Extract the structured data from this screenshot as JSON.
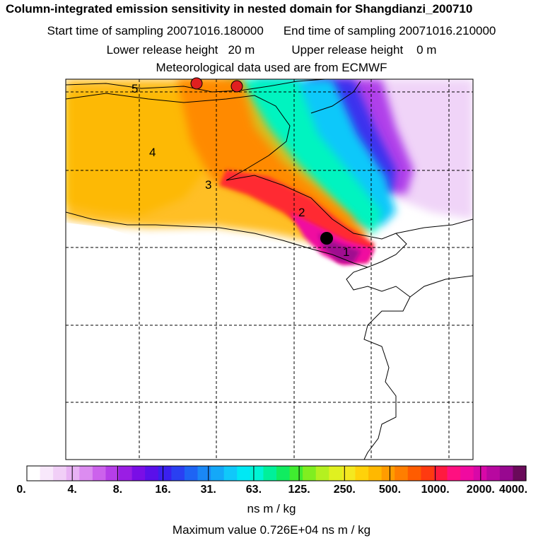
{
  "header": {
    "title": "Column-integrated emission sensitivity in nested domain for Shangdianzi_200710",
    "start_label": "Start time of sampling 20071016.180000",
    "end_label": "End time of sampling 20071016.210000",
    "lower_label": "Lower release height   20 m",
    "upper_label": "Upper release height    0 m",
    "met_label": "Meteorological data used are from ECMWF"
  },
  "map": {
    "receptor_marker": "black-dot",
    "position_labels": [
      "1",
      "2",
      "3",
      "4",
      "5"
    ],
    "source_markers": [
      "red-dot",
      "red-dot"
    ]
  },
  "colorbar": {
    "tick_labels": [
      "0.",
      "4.",
      "8.",
      "16.",
      "31.",
      "63.",
      "125.",
      "250.",
      "500.",
      "1000.",
      "2000.",
      "4000."
    ],
    "colors": [
      "#ffffff",
      "#f8e8fb",
      "#f1cff7",
      "#e8b2f4",
      "#dc8cf0",
      "#cc62ec",
      "#b63ee8",
      "#9a1ee4",
      "#7a0ee6",
      "#5a10ea",
      "#3a20ee",
      "#2a40f2",
      "#1e64f4",
      "#1a88f6",
      "#14a8f8",
      "#10c8fa",
      "#00e8f4",
      "#00f4d4",
      "#00f09a",
      "#10ec60",
      "#40ec30",
      "#80ee20",
      "#b4f020",
      "#e0f020",
      "#f4e820",
      "#ffd20a",
      "#ffb800",
      "#ff9c00",
      "#ff7e00",
      "#ff5c00",
      "#ff3a10",
      "#ff1a40",
      "#ff1080",
      "#f00aa0",
      "#d808a8",
      "#b808a0",
      "#980890",
      "#6a0a5a"
    ],
    "unit": "ns m / kg",
    "max_value_text": "Maximum value  0.726E+04 ns m / kg"
  }
}
